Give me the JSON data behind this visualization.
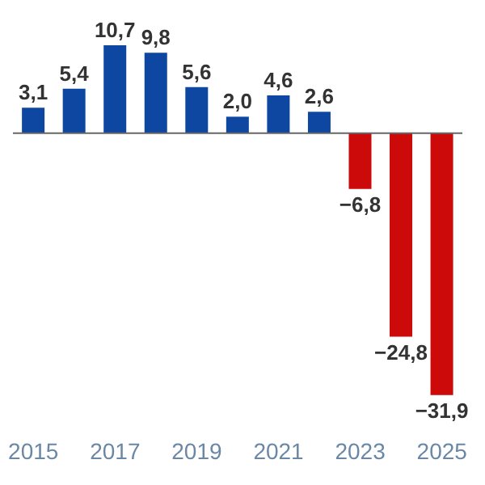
{
  "chart_data": {
    "type": "bar",
    "categories": [
      "2015",
      null,
      "2017",
      null,
      "2019",
      null,
      "2021",
      null,
      "2023",
      null,
      "2025"
    ],
    "values": [
      3.1,
      5.4,
      10.7,
      9.8,
      5.6,
      2.0,
      4.6,
      2.6,
      -6.8,
      -24.8,
      -31.9
    ],
    "colors": [
      "#0d47a1",
      "#0d47a1",
      "#0d47a1",
      "#0d47a1",
      "#0d47a1",
      "#0d47a1",
      "#0d47a1",
      "#0d47a1",
      "#cc0a0a",
      "#cc0a0a",
      "#cc0a0a"
    ],
    "value_labels": [
      "3,1",
      "5,4",
      "10,7",
      "9,8",
      "5,6",
      "2,0",
      "4,6",
      "2,6",
      "−6,8",
      "−24,8",
      "−31,9"
    ]
  }
}
